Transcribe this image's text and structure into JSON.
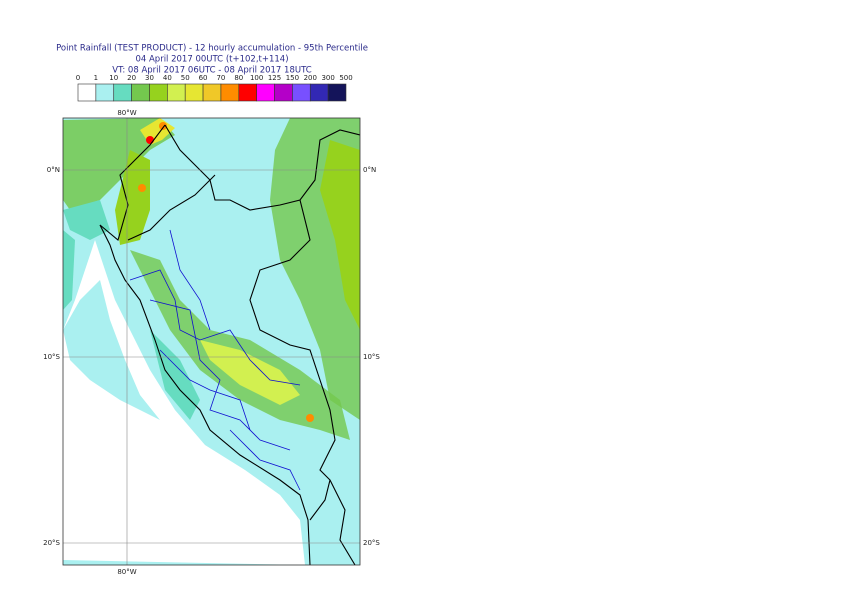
{
  "header": {
    "title": "Point Rainfall (TEST PRODUCT) - 12 hourly accumulation - 95th Percentile",
    "line2": "04 April 2017 00UTC (t+102,t+114)",
    "line3": "VT: 08 April 2017 06UTC - 08 April 2017 18UTC"
  },
  "legend": {
    "labels": [
      "0",
      "1",
      "10",
      "20",
      "30",
      "40",
      "50",
      "60",
      "70",
      "80",
      "100",
      "125",
      "150",
      "200",
      "300",
      "500"
    ],
    "colors": [
      "#ffffff",
      "#aaf0f0",
      "#66dcc0",
      "#74c84e",
      "#96d21e",
      "#d2f050",
      "#e6e632",
      "#f0c828",
      "#ff8c00",
      "#ff0000",
      "#ff00ff",
      "#b400c8",
      "#7850ff",
      "#3228b4",
      "#14145a"
    ]
  },
  "map": {
    "lon_labels": [
      "80°W"
    ],
    "lat_labels": [
      "0°N",
      "10°S",
      "20°S"
    ]
  }
}
